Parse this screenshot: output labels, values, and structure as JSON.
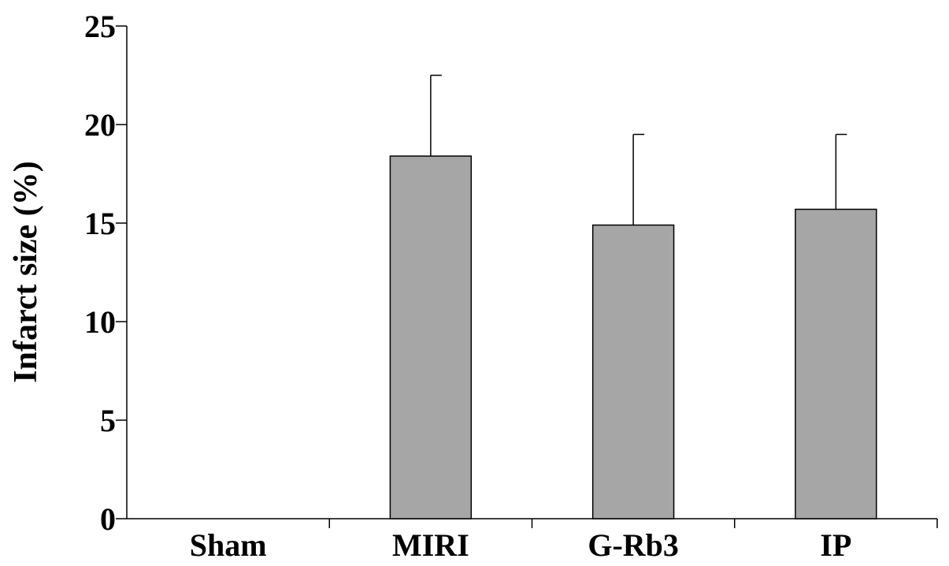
{
  "chart_data": {
    "type": "bar",
    "title": "",
    "xlabel": "",
    "ylabel": "Infarct size (%)",
    "ylim": [
      0,
      25
    ],
    "yticks": [
      0,
      5,
      10,
      15,
      20,
      25
    ],
    "categories": [
      "Sham",
      "MIRI",
      "G-Rb3",
      "IP"
    ],
    "values": [
      0,
      18.4,
      14.9,
      15.7
    ],
    "error_upper": [
      0,
      22.5,
      19.5,
      19.5
    ],
    "bar_color": "#a6a6a6",
    "grid": false,
    "legend": "none"
  }
}
